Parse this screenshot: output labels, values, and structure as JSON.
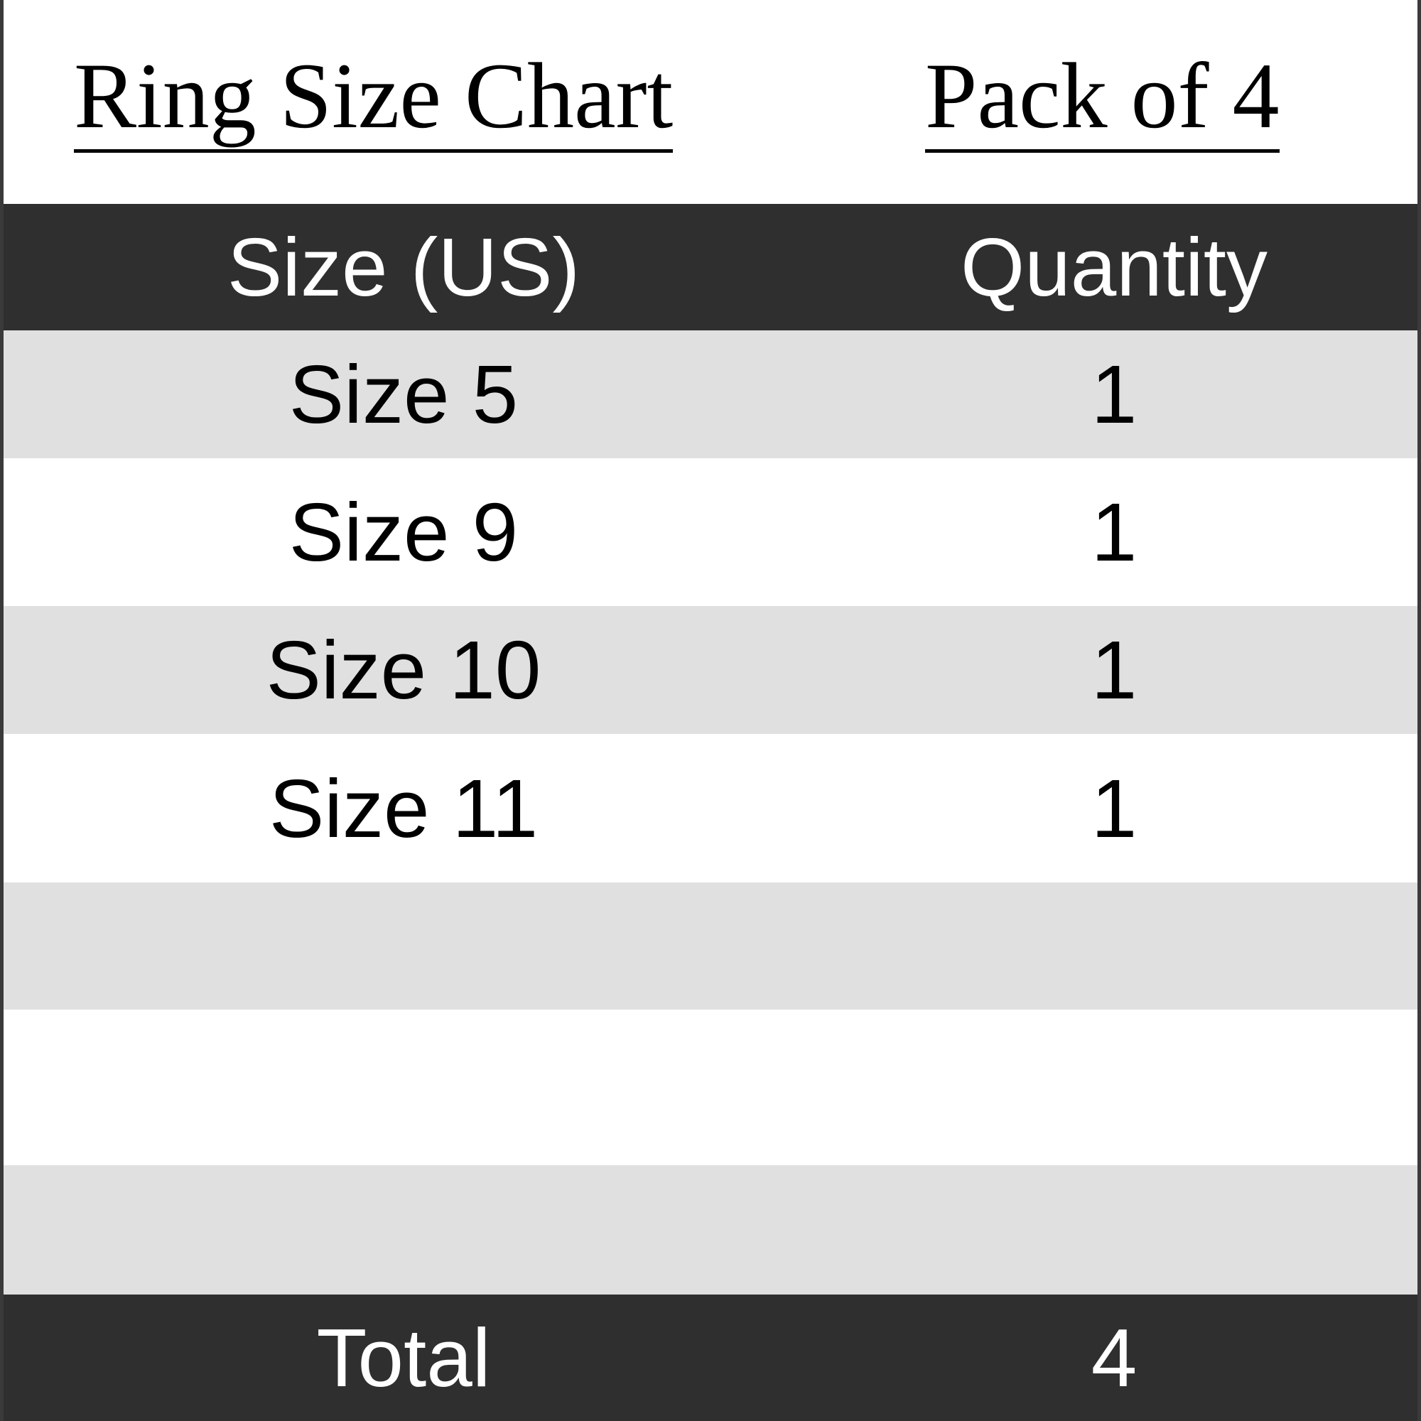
{
  "title": "Ring Size Chart",
  "pack_label": "Pack of 4",
  "table": {
    "headers": [
      "Size (US)",
      "Quantity"
    ],
    "rows": [
      {
        "size": "Size 5",
        "quantity": "1"
      },
      {
        "size": "Size 9",
        "quantity": "1"
      },
      {
        "size": "Size 10",
        "quantity": "1"
      },
      {
        "size": "Size 11",
        "quantity": "1"
      },
      {
        "size": "",
        "quantity": ""
      },
      {
        "size": "",
        "quantity": ""
      },
      {
        "size": "",
        "quantity": ""
      }
    ],
    "footer": {
      "label": "Total",
      "value": "4"
    }
  },
  "colors": {
    "header_bg": "#2f2f2f",
    "stripe": "#e0e0e0"
  }
}
